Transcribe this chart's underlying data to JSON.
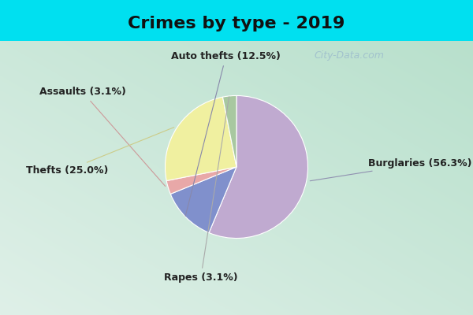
{
  "title": "Crimes by type - 2019",
  "slices": [
    {
      "label": "Burglaries",
      "pct": 56.3,
      "color": "#c0aad0"
    },
    {
      "label": "Auto thefts",
      "pct": 12.5,
      "color": "#8090cc"
    },
    {
      "label": "Assaults",
      "pct": 3.1,
      "color": "#e8a8a8"
    },
    {
      "label": "Thefts",
      "pct": 25.0,
      "color": "#f0f0a0"
    },
    {
      "label": "Rapes",
      "pct": 3.1,
      "color": "#a8c8a0"
    }
  ],
  "bg_top": "#00e0f0",
  "bg_bottom": "#00e0f0",
  "bg_inner_tl": "#c8e8d8",
  "bg_inner_br": "#e8f4ee",
  "title_fontsize": 16,
  "label_fontsize": 9,
  "watermark": "City-Data.com",
  "title_bar_height": 0.13
}
